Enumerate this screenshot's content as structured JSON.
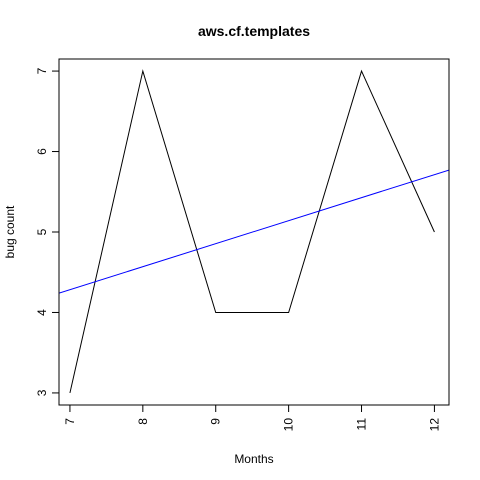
{
  "chart_data": {
    "type": "line",
    "title": "aws.cf.templates",
    "xlabel": "Months",
    "ylabel": "bug count",
    "x": [
      7,
      8,
      9,
      10,
      11,
      12
    ],
    "xlim": [
      6.85,
      12.2
    ],
    "ylim": [
      2.85,
      7.15
    ],
    "xticks": [
      7,
      8,
      9,
      10,
      11,
      12
    ],
    "yticks": [
      3,
      4,
      5,
      6,
      7
    ],
    "grid": false,
    "series": [
      {
        "kind": "line",
        "color": "#000000",
        "values": [
          3,
          7,
          4,
          4,
          7,
          5
        ]
      },
      {
        "kind": "trend-line",
        "color": "#0000ff",
        "y_at_x": [
          [
            6.85,
            4.24
          ],
          [
            12.2,
            5.77
          ]
        ]
      }
    ]
  }
}
